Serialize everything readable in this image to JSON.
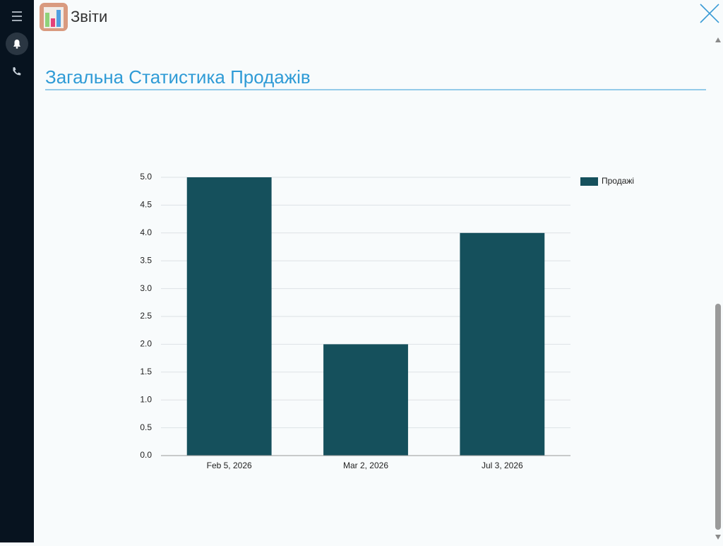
{
  "app": {
    "title": "Звіти"
  },
  "section": {
    "title": "Загальна Статистика Продажів"
  },
  "chart_data": {
    "type": "bar",
    "categories": [
      "Feb 5, 2026",
      "Mar 2, 2026",
      "Jul 3, 2026"
    ],
    "series": [
      {
        "name": "Продажі",
        "color": "#15505c",
        "values": [
          5,
          2,
          4
        ]
      }
    ],
    "ylim": [
      0,
      5
    ],
    "yticks": [
      {
        "value": 0,
        "label": "0.0"
      },
      {
        "value": 0.5,
        "label": "0.5"
      },
      {
        "value": 1,
        "label": "1.0"
      },
      {
        "value": 1.5,
        "label": "1.5"
      },
      {
        "value": 2,
        "label": "2.0"
      },
      {
        "value": 2.5,
        "label": "2.5"
      },
      {
        "value": 3,
        "label": "3.0"
      },
      {
        "value": 3.5,
        "label": "3.5"
      },
      {
        "value": 4,
        "label": "4.0"
      },
      {
        "value": 4.5,
        "label": "4.5"
      },
      {
        "value": 5,
        "label": "5.0"
      }
    ],
    "grid": true,
    "legend": "right"
  }
}
